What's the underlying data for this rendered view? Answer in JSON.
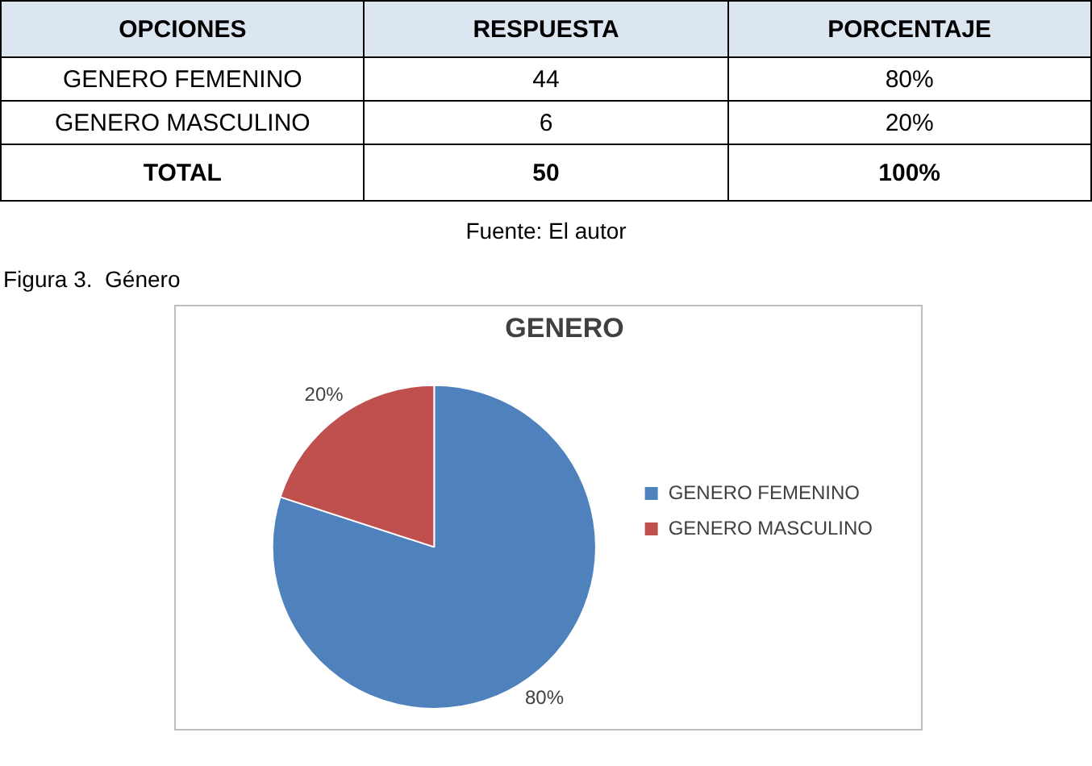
{
  "chart_data": [
    {
      "type": "other",
      "xlabel": "OPCIONES",
      "categories": [
        "GENERO FEMENINO",
        "GENERO MASCULINO",
        "TOTAL"
      ],
      "data_labels": true,
      "series": [
        {
          "name": "RESPUESTA",
          "values": [
            44,
            6,
            50
          ]
        },
        {
          "name": "PORCENTAJE",
          "values": [
            80,
            20,
            100
          ],
          "value_labels": [
            "80%",
            "20%",
            "100%"
          ]
        }
      ],
      "annotations": [
        "Fuente: El autor"
      ]
    },
    {
      "type": "pie",
      "title": "GENERO",
      "categories": [
        "GENERO FEMENINO",
        "GENERO MASCULINO"
      ],
      "values": [
        80,
        20
      ],
      "colors": [
        "#4f81bd",
        "#c0504d"
      ],
      "value_labels": [
        "80%",
        "20%"
      ],
      "legend": "right",
      "annotations": [
        "Figura 3.  Género"
      ]
    }
  ]
}
